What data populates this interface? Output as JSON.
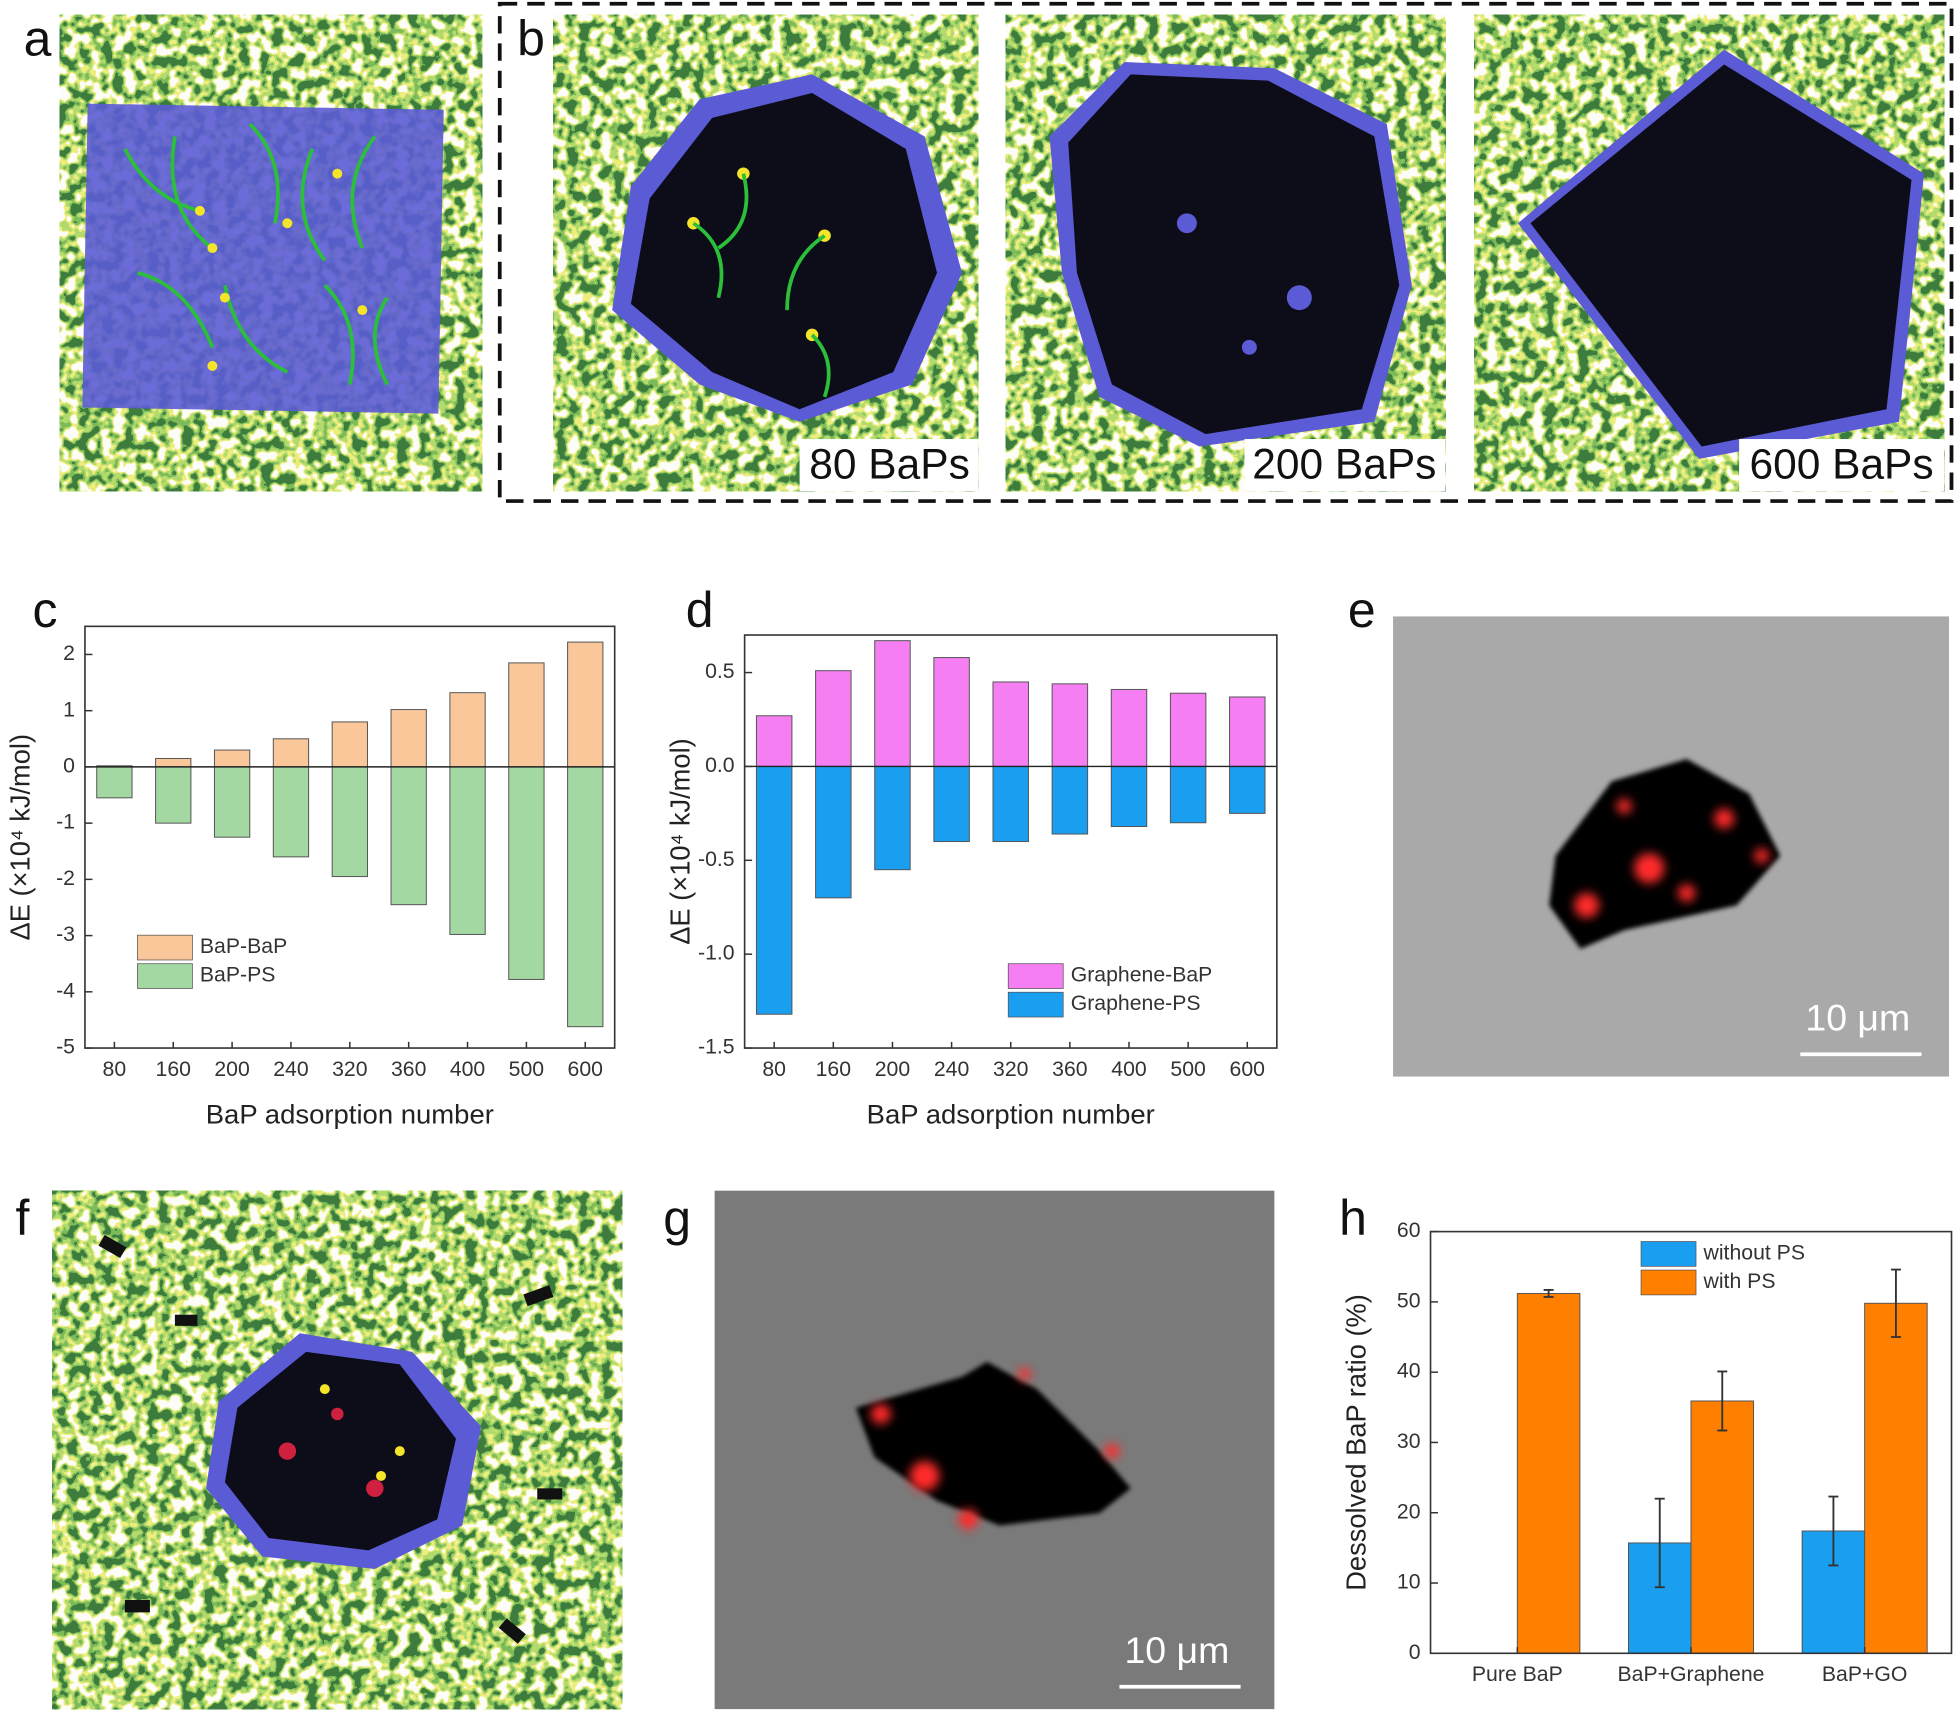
{
  "panel_labels": [
    "a",
    "b",
    "c",
    "d",
    "e",
    "f",
    "g",
    "h"
  ],
  "captions": [
    "80 BaPs",
    "200 BaPs",
    "600 BaPs"
  ],
  "scale_bars": [
    "10 μm",
    "10 μm"
  ],
  "chart_data": [
    {
      "type": "bar",
      "xlabel": "BaP adsorption number",
      "ylabel": "ΔE (×10⁴ kJ/mol)",
      "categories": [
        80,
        160,
        200,
        240,
        320,
        360,
        400,
        500,
        600
      ],
      "series": [
        {
          "name": "BaP-BaP",
          "color": "#f9c79a",
          "values": [
            0.02,
            0.15,
            0.3,
            0.5,
            0.8,
            1.02,
            1.32,
            1.85,
            2.22
          ]
        },
        {
          "name": "BaP-PS",
          "color": "#a3d8a3",
          "values": [
            -0.55,
            -1.0,
            -1.25,
            -1.6,
            -1.95,
            -2.45,
            -2.98,
            -3.78,
            -4.62
          ]
        }
      ],
      "ylim": [
        -5,
        2.5
      ],
      "yticks": [
        -5,
        -4,
        -3,
        -2,
        -1,
        0,
        1,
        2
      ],
      "legend": "lower left"
    },
    {
      "type": "bar",
      "xlabel": "BaP adsorption number",
      "ylabel": "ΔE (×10⁴ kJ/mol)",
      "categories": [
        80,
        160,
        200,
        240,
        320,
        360,
        400,
        500,
        600
      ],
      "series": [
        {
          "name": "Graphene-BaP",
          "color": "#f57ef3",
          "values": [
            0.27,
            0.51,
            0.67,
            0.58,
            0.45,
            0.44,
            0.41,
            0.39,
            0.37
          ]
        },
        {
          "name": "Graphene-PS",
          "color": "#1a9ff0",
          "values": [
            -1.32,
            -0.7,
            -0.55,
            -0.4,
            -0.4,
            -0.36,
            -0.32,
            -0.3,
            -0.25
          ]
        }
      ],
      "ylim": [
        -1.5,
        0.7
      ],
      "yticks": [
        -1.5,
        {
          "value": -1,
          "label": "-1.0"
        },
        -0.5,
        {
          "value": 0,
          "label": "0.0"
        },
        0.5
      ],
      "legend": "lower right"
    },
    {
      "type": "grouped_bar",
      "ylabel": "Dessolved BaP ratio (%)",
      "categories": [
        "Pure BaP",
        "BaP+Graphene",
        "BaP+GO"
      ],
      "series": [
        {
          "name": "without PS",
          "color": "#1a9ff0",
          "values": [
            null,
            15.7,
            17.4
          ],
          "errors": [
            null,
            6.3,
            4.9
          ]
        },
        {
          "name": "with PS",
          "color": "#ff8000",
          "values": [
            51.2,
            35.9,
            49.8
          ],
          "errors": [
            0.5,
            4.2,
            4.8
          ]
        }
      ],
      "ylim": [
        0,
        60
      ],
      "yticks": [
        0,
        10,
        20,
        30,
        40,
        50,
        60
      ],
      "legend": "upper center"
    }
  ]
}
